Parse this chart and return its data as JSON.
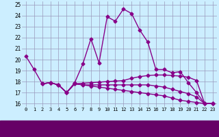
{
  "background_color": "#cceeff",
  "grid_color": "#9999bb",
  "line_color": "#880088",
  "xlim": [
    -0.5,
    23.5
  ],
  "ylim": [
    15.7,
    25.3
  ],
  "yticks": [
    16,
    17,
    18,
    19,
    20,
    21,
    22,
    23,
    24,
    25
  ],
  "xticks": [
    0,
    1,
    2,
    3,
    4,
    5,
    6,
    7,
    8,
    9,
    10,
    11,
    12,
    13,
    14,
    15,
    16,
    17,
    18,
    19,
    20,
    21,
    22,
    23
  ],
  "line1_x": [
    0,
    1,
    2,
    3,
    4,
    5,
    6,
    7,
    8,
    9,
    10,
    11,
    12,
    13,
    14,
    15,
    16,
    17,
    18,
    19,
    20,
    21,
    22,
    23
  ],
  "line1_y": [
    20.3,
    19.1,
    17.8,
    17.9,
    17.7,
    17.0,
    17.9,
    19.6,
    21.9,
    19.7,
    23.9,
    23.5,
    24.6,
    24.2,
    22.7,
    21.6,
    19.1,
    19.1,
    18.8,
    18.9,
    17.9,
    17.0,
    16.0,
    16.0
  ],
  "line2_x": [
    2,
    3,
    4,
    5,
    6,
    7,
    8,
    9,
    10,
    11,
    12,
    13,
    14,
    15,
    16,
    17,
    18,
    19,
    20,
    21,
    22,
    23
  ],
  "line2_y": [
    17.8,
    17.9,
    17.7,
    17.0,
    17.8,
    17.85,
    17.9,
    17.95,
    18.0,
    18.05,
    18.1,
    18.3,
    18.45,
    18.55,
    18.6,
    18.6,
    18.55,
    18.5,
    18.4,
    18.1,
    16.0,
    16.0
  ],
  "line3_x": [
    2,
    3,
    4,
    5,
    6,
    7,
    8,
    9,
    10,
    11,
    12,
    13,
    14,
    15,
    16,
    17,
    18,
    19,
    20,
    21,
    22,
    23
  ],
  "line3_y": [
    17.8,
    17.9,
    17.7,
    17.0,
    17.8,
    17.7,
    17.7,
    17.7,
    17.7,
    17.7,
    17.7,
    17.7,
    17.7,
    17.7,
    17.6,
    17.5,
    17.3,
    17.1,
    16.9,
    16.6,
    16.0,
    16.0
  ],
  "line4_x": [
    2,
    3,
    4,
    5,
    6,
    7,
    8,
    9,
    10,
    11,
    12,
    13,
    14,
    15,
    16,
    17,
    18,
    19,
    20,
    21,
    22,
    23
  ],
  "line4_y": [
    17.8,
    17.9,
    17.7,
    17.0,
    17.8,
    17.7,
    17.6,
    17.5,
    17.4,
    17.3,
    17.2,
    17.1,
    17.0,
    16.9,
    16.8,
    16.7,
    16.5,
    16.3,
    16.2,
    16.1,
    16.0,
    16.0
  ]
}
